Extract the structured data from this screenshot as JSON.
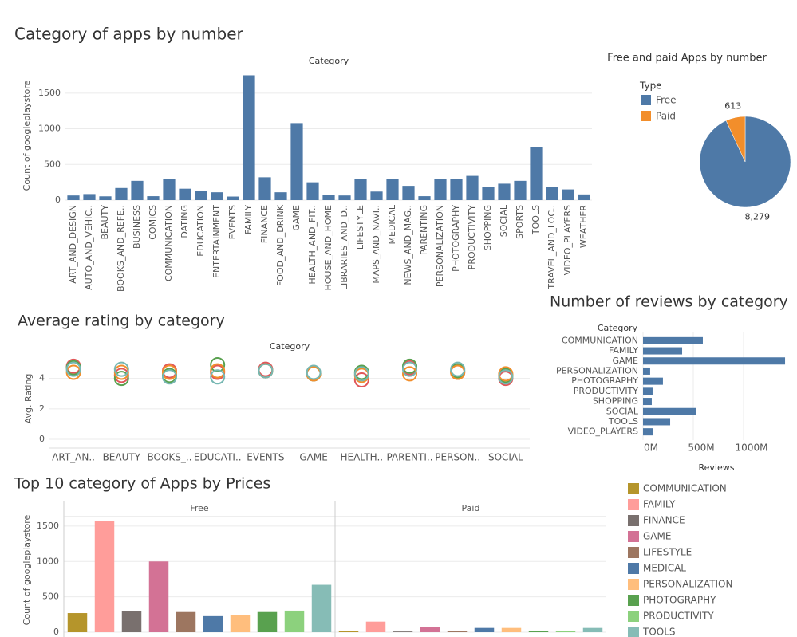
{
  "chart_data": [
    {
      "type": "bar",
      "title": "Category of apps by number",
      "header": "Category",
      "y_label": "Count of googleplaystore",
      "categories": [
        "ART_AND_DESIGN",
        "AUTO_AND_VEHIC..",
        "BEAUTY",
        "BOOKS_AND_REFE..",
        "BUSINESS",
        "COMICS",
        "COMMUNICATION",
        "DATING",
        "EDUCATION",
        "ENTERTAINMENT",
        "EVENTS",
        "FAMILY",
        "FINANCE",
        "FOOD_AND_DRINK",
        "GAME",
        "HEALTH_AND_FIT..",
        "HOUSE_AND_HOME",
        "LIBRARIES_AND_D..",
        "LIFESTYLE",
        "MAPS_AND_NAVI..",
        "MEDICAL",
        "NEWS_AND_MAG..",
        "PARENTING",
        "PERSONALIZATION",
        "PHOTOGRAPHY",
        "PRODUCTIVITY",
        "SHOPPING",
        "SOCIAL",
        "SPORTS",
        "TOOLS",
        "TRAVEL_AND_LOC..",
        "VIDEO_PLAYERS",
        "WEATHER"
      ],
      "values": [
        65,
        85,
        53,
        170,
        270,
        55,
        300,
        160,
        130,
        110,
        50,
        1750,
        320,
        110,
        1080,
        250,
        75,
        65,
        300,
        120,
        300,
        200,
        55,
        300,
        300,
        340,
        190,
        230,
        270,
        740,
        180,
        150,
        80
      ],
      "color": "#4e79a7",
      "ylim": [
        0,
        1800
      ],
      "yticks": [
        0,
        500,
        1000,
        1500
      ],
      "grid": true
    },
    {
      "type": "pie",
      "title": "Free and paid Apps by number",
      "legend_title": "Type",
      "categories": [
        "Free",
        "Paid"
      ],
      "values": [
        8279,
        613
      ],
      "value_labels": [
        "8,279",
        "613"
      ],
      "colors": [
        "#4e79a7",
        "#f28e2b"
      ]
    },
    {
      "type": "scatter",
      "title": "Average rating by category",
      "header": "Category",
      "y_label": "Avg. Rating",
      "categories": [
        "ART_AN..",
        "BEAUTY",
        "BOOKS_..",
        "EDUCATI..",
        "EVENTS",
        "GAME",
        "HEALTH..",
        "PARENTI..",
        "PERSON..",
        "SOCIAL"
      ],
      "series": [
        {
          "color": "#e15759",
          "values": [
            4.8,
            4.2,
            4.5,
            4.4,
            4.6,
            4.3,
            3.9,
            4.7,
            4.4,
            4.0
          ]
        },
        {
          "color": "#59a14f",
          "values": [
            4.7,
            4.0,
            4.2,
            4.9,
            4.5,
            4.3,
            4.4,
            4.8,
            4.5,
            4.2
          ]
        },
        {
          "color": "#f28e2b",
          "values": [
            4.4,
            4.4,
            4.4,
            4.5,
            4.5,
            4.3,
            4.2,
            4.3,
            4.4,
            4.3
          ]
        },
        {
          "color": "#76b7b2",
          "values": [
            4.6,
            4.6,
            4.1,
            4.1,
            4.5,
            4.4,
            4.3,
            4.6,
            4.6,
            4.1
          ]
        }
      ],
      "ylim": [
        0,
        5.5
      ],
      "yticks": [
        0,
        2,
        4
      ],
      "grid": true
    },
    {
      "type": "hbar",
      "title": "Number of reviews by category",
      "header": "Category",
      "x_label": "Reviews",
      "categories": [
        "COMMUNICATION",
        "FAMILY",
        "GAME",
        "PERSONALIZATION",
        "PHOTOGRAPHY",
        "PRODUCTIVITY",
        "SHOPPING",
        "SOCIAL",
        "TOOLS",
        "VIDEO_PLAYERS"
      ],
      "values": [
        595000000,
        389000000,
        1413000000,
        71000000,
        198000000,
        95000000,
        87000000,
        524000000,
        270000000,
        103000000
      ],
      "color": "#4e79a7",
      "xlim": [
        0,
        1500000000
      ],
      "xticks": [
        {
          "value": 0,
          "label": "0M"
        },
        {
          "value": 500000000,
          "label": "500M"
        },
        {
          "value": 1000000000,
          "label": "1000M"
        }
      ],
      "grid": true
    },
    {
      "type": "faceted_bar",
      "title": "Top 10 category of Apps by Prices",
      "y_label": "Count of googleplaystore",
      "categories": [
        "COMMUNICATION",
        "FAMILY",
        "FINANCE",
        "GAME",
        "LIFESTYLE",
        "MEDICAL",
        "PERSONALIZATION",
        "PHOTOGRAPHY",
        "PRODUCTIVITY",
        "TOOLS"
      ],
      "colors": [
        "#b5952b",
        "#ff9d9a",
        "#79706e",
        "#d37295",
        "#9d7660",
        "#4e79a7",
        "#ffbe7d",
        "#59a14f",
        "#8cd17d",
        "#86bcb6"
      ],
      "series": [
        {
          "name": "Free",
          "values": [
            270,
            1570,
            295,
            1000,
            285,
            227,
            240,
            285,
            305,
            670
          ]
        },
        {
          "name": "Paid",
          "values": [
            18,
            150,
            10,
            70,
            15,
            60,
            60,
            12,
            15,
            60
          ]
        }
      ],
      "ylim": [
        0,
        1600
      ],
      "yticks": [
        0,
        500,
        1000,
        1500
      ],
      "grid": true
    }
  ]
}
